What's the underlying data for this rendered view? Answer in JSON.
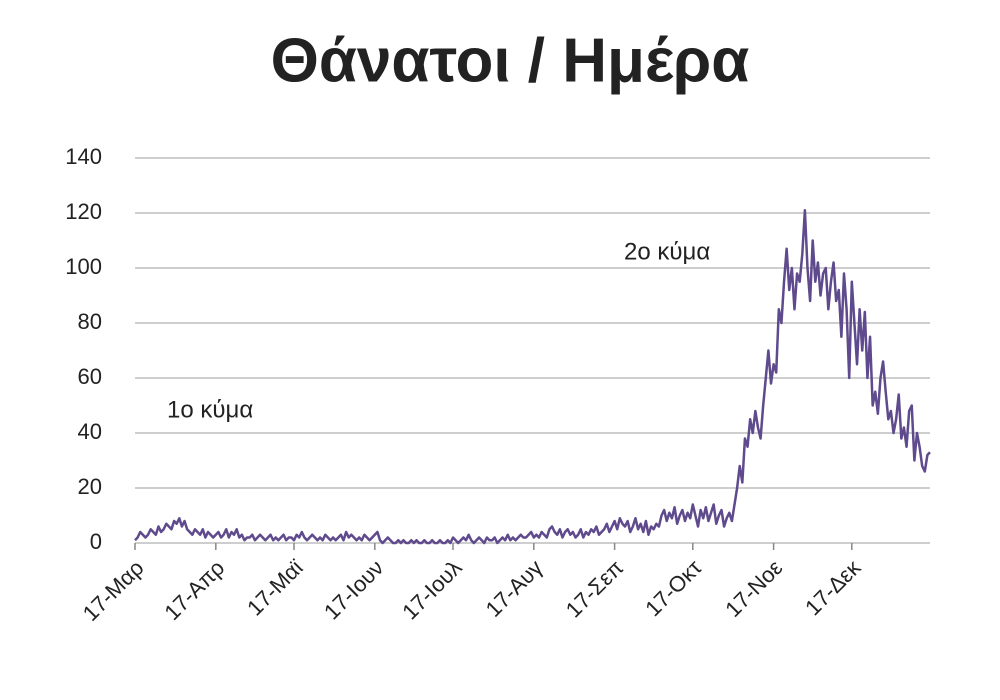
{
  "chart_data": {
    "type": "line",
    "title": "Θάνατοι / Ημέρα",
    "categories": [
      "17-Μαρ",
      null,
      null,
      null,
      null,
      null,
      null,
      null,
      null,
      null,
      null,
      null,
      null,
      null,
      null,
      null,
      null,
      null,
      null,
      null,
      null,
      null,
      null,
      null,
      null,
      null,
      null,
      null,
      null,
      null,
      null,
      "17-Απρ",
      null,
      null,
      null,
      null,
      null,
      null,
      null,
      null,
      null,
      null,
      null,
      null,
      null,
      null,
      null,
      null,
      null,
      null,
      null,
      null,
      null,
      null,
      null,
      null,
      null,
      null,
      null,
      null,
      null,
      "17-Μαϊ",
      null,
      null,
      null,
      null,
      null,
      null,
      null,
      null,
      null,
      null,
      null,
      null,
      null,
      null,
      null,
      null,
      null,
      null,
      null,
      null,
      null,
      null,
      null,
      null,
      null,
      null,
      null,
      null,
      null,
      null,
      "17-Ιουν",
      null,
      null,
      null,
      null,
      null,
      null,
      null,
      null,
      null,
      null,
      null,
      null,
      null,
      null,
      null,
      null,
      null,
      null,
      null,
      null,
      null,
      null,
      null,
      null,
      null,
      null,
      null,
      null,
      null,
      "17-Ιουλ",
      null,
      null,
      null,
      null,
      null,
      null,
      null,
      null,
      null,
      null,
      null,
      null,
      null,
      null,
      null,
      null,
      null,
      null,
      null,
      null,
      null,
      null,
      null,
      null,
      null,
      null,
      null,
      null,
      null,
      null,
      "17-Αυγ",
      null,
      null,
      null,
      null,
      null,
      null,
      null,
      null,
      null,
      null,
      null,
      null,
      null,
      null,
      null,
      null,
      null,
      null,
      null,
      null,
      null,
      null,
      null,
      null,
      null,
      null,
      null,
      null,
      null,
      null,
      "17-Σεπ",
      null,
      null,
      null,
      null,
      null,
      null,
      null,
      null,
      null,
      null,
      null,
      null,
      null,
      null,
      null,
      null,
      null,
      null,
      null,
      null,
      null,
      null,
      null,
      null,
      null,
      null,
      null,
      null,
      null,
      "17-Οκτ",
      null,
      null,
      null,
      null,
      null,
      null,
      null,
      null,
      null,
      null,
      null,
      null,
      null,
      null,
      null,
      null,
      null,
      null,
      null,
      null,
      null,
      null,
      null,
      null,
      null,
      null,
      null,
      null,
      null,
      null,
      "17-Νοε",
      null,
      null,
      null,
      null,
      null,
      null,
      null,
      null,
      null,
      null,
      null,
      null,
      null,
      null,
      null,
      null,
      null,
      null,
      null,
      null,
      null,
      null,
      null,
      null,
      null,
      null,
      null,
      null,
      null,
      "17-Δεκ",
      null,
      null,
      null,
      null,
      null,
      null,
      null,
      null,
      null,
      null,
      null,
      null,
      null,
      null,
      null,
      null,
      null,
      null,
      null,
      null,
      null,
      null,
      null,
      null,
      null,
      null,
      null,
      null,
      null,
      null
    ],
    "values": [
      1,
      2,
      4,
      3,
      2,
      3,
      5,
      4,
      3,
      6,
      4,
      5,
      7,
      6,
      5,
      8,
      7,
      9,
      6,
      8,
      5,
      4,
      3,
      5,
      4,
      3,
      5,
      2,
      4,
      3,
      2,
      3,
      4,
      2,
      3,
      5,
      2,
      4,
      3,
      5,
      2,
      3,
      1,
      2,
      2,
      3,
      1,
      2,
      3,
      2,
      1,
      2,
      3,
      1,
      2,
      1,
      2,
      3,
      1,
      2,
      2,
      1,
      3,
      2,
      4,
      2,
      1,
      2,
      3,
      2,
      1,
      2,
      1,
      3,
      2,
      1,
      2,
      1,
      2,
      3,
      1,
      4,
      2,
      3,
      2,
      1,
      2,
      1,
      3,
      2,
      1,
      2,
      3,
      4,
      1,
      0,
      1,
      2,
      1,
      0,
      0,
      1,
      0,
      1,
      0,
      0,
      1,
      0,
      1,
      0,
      0,
      1,
      0,
      0,
      1,
      0,
      0,
      1,
      0,
      0,
      1,
      0,
      2,
      1,
      0,
      1,
      2,
      1,
      3,
      1,
      0,
      1,
      2,
      1,
      0,
      2,
      1,
      1,
      2,
      0,
      1,
      2,
      1,
      3,
      1,
      2,
      1,
      2,
      3,
      2,
      2,
      3,
      4,
      2,
      3,
      2,
      4,
      3,
      2,
      5,
      6,
      4,
      3,
      5,
      2,
      4,
      5,
      3,
      4,
      2,
      3,
      5,
      2,
      4,
      3,
      5,
      4,
      6,
      3,
      4,
      5,
      7,
      4,
      6,
      8,
      5,
      9,
      7,
      6,
      8,
      4,
      6,
      9,
      5,
      7,
      4,
      8,
      3,
      6,
      5,
      7,
      6,
      10,
      12,
      8,
      11,
      9,
      13,
      7,
      10,
      12,
      8,
      11,
      9,
      14,
      10,
      6,
      12,
      9,
      13,
      8,
      11,
      14,
      7,
      10,
      12,
      6,
      9,
      11,
      8,
      14,
      20,
      28,
      22,
      38,
      35,
      45,
      40,
      48,
      42,
      38,
      50,
      60,
      70,
      58,
      65,
      62,
      85,
      80,
      95,
      107,
      92,
      100,
      85,
      98,
      95,
      105,
      121,
      100,
      88,
      110,
      95,
      102,
      90,
      98,
      100,
      85,
      95,
      102,
      88,
      92,
      75,
      98,
      85,
      60,
      95,
      80,
      65,
      85,
      70,
      84,
      60,
      75,
      50,
      55,
      47,
      60,
      66,
      55,
      45,
      48,
      40,
      45,
      54,
      38,
      42,
      35,
      48,
      50,
      30,
      40,
      35,
      28,
      26,
      32,
      33
    ],
    "color": "#5e4a8c",
    "ylim": [
      0,
      140
    ],
    "yticks": [
      0,
      20,
      40,
      60,
      80,
      100,
      120,
      140
    ],
    "grid": true,
    "annotations": [
      {
        "text": "1ο κύμα",
        "color": "#d42020"
      },
      {
        "text": "2ο κύμα",
        "color": "#d42020"
      }
    ]
  }
}
